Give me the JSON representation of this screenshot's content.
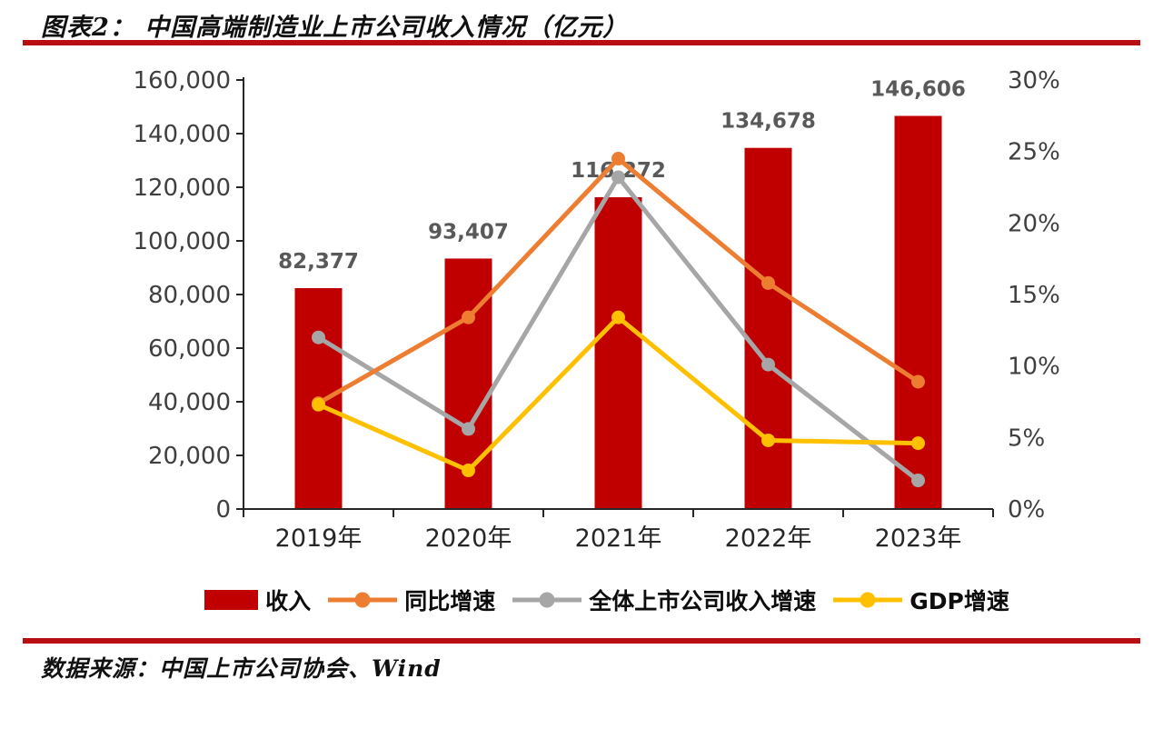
{
  "page": {
    "title": "图表2： 中国高端制造业上市公司收入情况（亿元）",
    "source": "数据来源：中国上市公司协会、Wind",
    "divider_color": "#b80d12",
    "background_color": "#ffffff"
  },
  "chart_data": {
    "type": "bar",
    "subtype": "bar+line combo, lines on secondary percent axis",
    "categories": [
      "2019年",
      "2020年",
      "2021年",
      "2022年",
      "2023年"
    ],
    "bar_series": {
      "name": "收入",
      "color": "#c00000",
      "axis": "left",
      "values": [
        82377,
        93407,
        116272,
        134678,
        146606
      ],
      "labels": [
        "82,377",
        "93,407",
        "116,272",
        "134,678",
        "146,606"
      ]
    },
    "series": [
      {
        "name": "同比增速",
        "type": "line",
        "color": "#ed7d31",
        "axis": "right",
        "values_pct": [
          7.4,
          13.4,
          24.5,
          15.8,
          8.9
        ]
      },
      {
        "name": "全体上市公司收入增速",
        "type": "line",
        "color": "#a6a6a6",
        "axis": "right",
        "values_pct": [
          12.0,
          5.6,
          23.2,
          10.1,
          2.0
        ]
      },
      {
        "name": "GDP增速",
        "type": "line",
        "color": "#ffc000",
        "axis": "right",
        "values_pct": [
          7.3,
          2.7,
          13.4,
          4.8,
          4.6
        ]
      }
    ],
    "left_axis": {
      "min": 0,
      "max": 160000,
      "step": 20000,
      "tick_labels": [
        "0",
        "20,000",
        "40,000",
        "60,000",
        "80,000",
        "100,000",
        "120,000",
        "140,000",
        "160,000"
      ]
    },
    "right_axis": {
      "min": 0,
      "max": 30,
      "step": 5,
      "tick_labels": [
        "0%",
        "5%",
        "10%",
        "15%",
        "20%",
        "25%",
        "30%"
      ]
    },
    "grid": false,
    "legend_position": "bottom",
    "legend": [
      {
        "label": "收入",
        "marker": "bar",
        "color": "#c00000"
      },
      {
        "label": "同比增速",
        "marker": "line-circle",
        "color": "#ed7d31"
      },
      {
        "label": "全体上市公司收入增速",
        "marker": "line-circle",
        "color": "#a6a6a6"
      },
      {
        "label": "GDP增速",
        "marker": "line-circle",
        "color": "#ffc000"
      }
    ],
    "label_color": "#595959",
    "axis_text_color": "#3f3f3f",
    "axis_line_color": "#262626"
  }
}
